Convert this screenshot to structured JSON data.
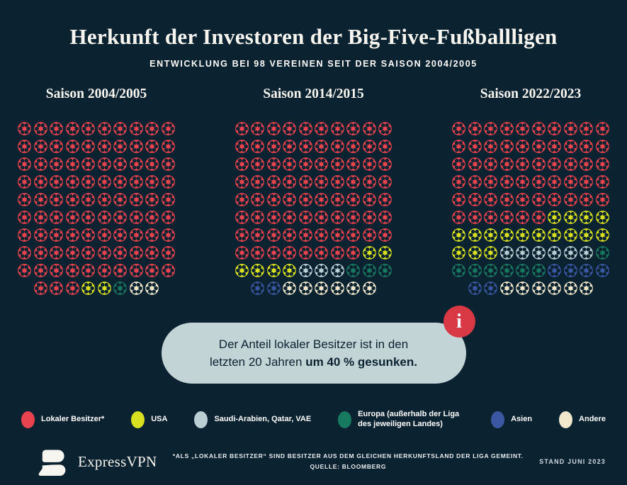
{
  "page": {
    "title": "Herkunft der Investoren der Big-Five-Fußballligen",
    "subtitle": "ENTWICKLUNG BEI 98 VEREINEN SEIT DER SAISON 2004/2005"
  },
  "colors": {
    "background": "#0b2231",
    "text": "#f7f5ef",
    "callout_bg": "#c3d4d7",
    "info_red": "#d93845"
  },
  "chart_data": {
    "type": "pictogram-waffle",
    "unit": "1 Ball = 1 Verein",
    "total_per_season": 98,
    "grid": {
      "columns": 10,
      "full_rows": 9,
      "last_row_count": 8
    },
    "categories": [
      {
        "key": "lokaler_besitzer",
        "label": "Lokaler Besitzer*",
        "color": "#e8434e"
      },
      {
        "key": "usa",
        "label": "USA",
        "color": "#d8e01f"
      },
      {
        "key": "saudi_qatar_vae",
        "label": "Saudi-Arabien, Qatar, VAE",
        "color": "#b9cfd4"
      },
      {
        "key": "europa",
        "label": "Europa (außerhalb der Liga des jeweiligen Landes)",
        "color": "#17795f"
      },
      {
        "key": "asien",
        "label": "Asien",
        "color": "#3b57a2"
      },
      {
        "key": "andere",
        "label": "Andere",
        "color": "#f1e8cc"
      }
    ],
    "seasons": [
      {
        "label": "Saison 2004/2005",
        "values": [
          93,
          2,
          0,
          1,
          0,
          2
        ]
      },
      {
        "label": "Saison 2014/2015",
        "values": [
          78,
          6,
          3,
          3,
          2,
          6
        ]
      },
      {
        "label": "Saison 2022/2023",
        "values": [
          56,
          17,
          6,
          7,
          6,
          6
        ]
      }
    ]
  },
  "callout": {
    "line1": "Der Anteil lokaler Besitzer ist in den",
    "line2_regular": "letzten 20 Jahren ",
    "line2_bold": "um 40 % gesunken.",
    "info_glyph": "i"
  },
  "footer": {
    "brand": "ExpressVPN",
    "footnote_line1": "*ALS „LOKALER BESITZER“ SIND BESITZER AUS DEM GLEICHEN HERKUNFTSLAND DER LIGA GEMEINT.",
    "footnote_line2": "QUELLE: BLOOMBERG",
    "date": "STAND JUNI 2023"
  }
}
